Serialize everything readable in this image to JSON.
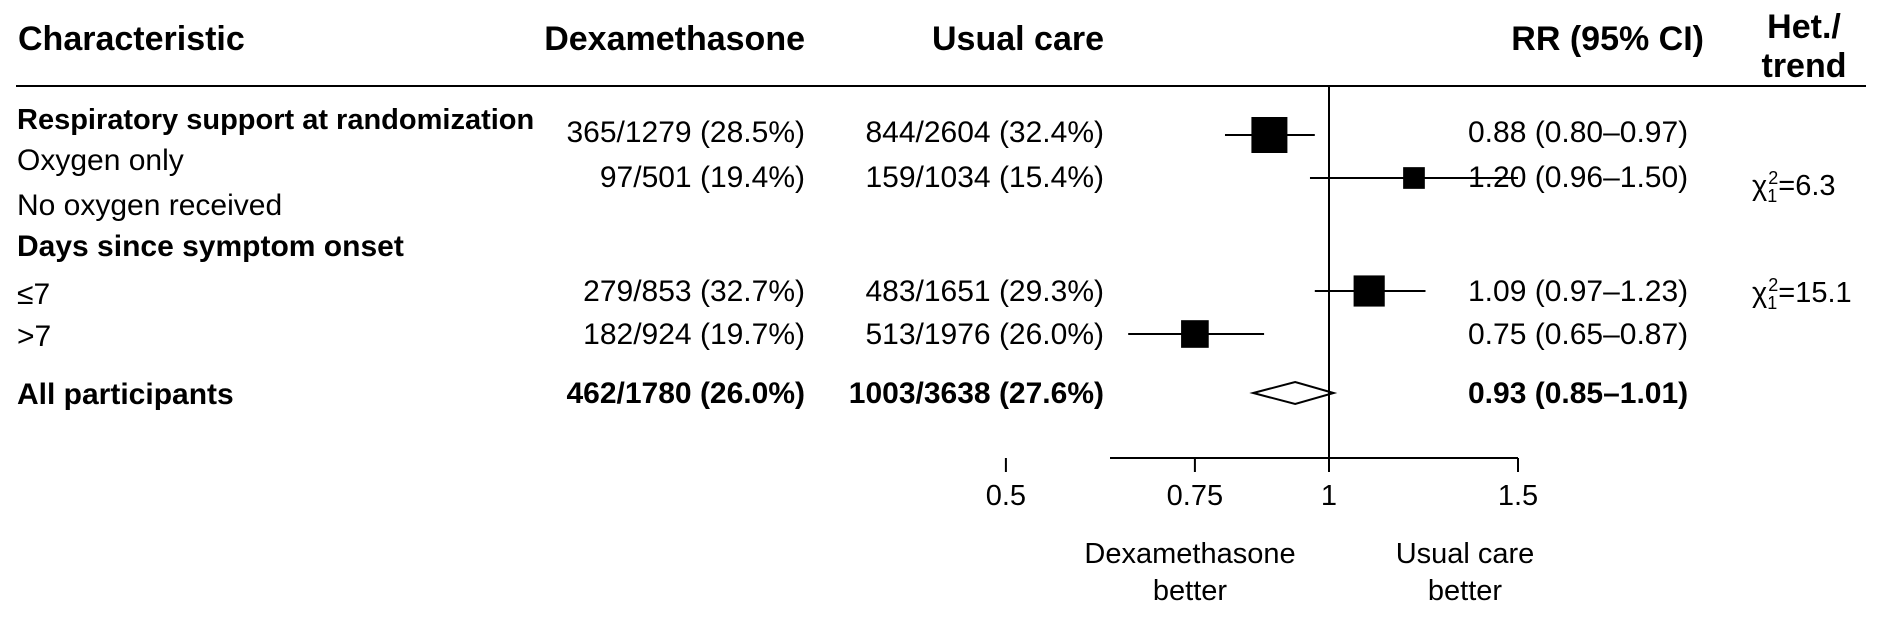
{
  "headers": {
    "characteristic": "Characteristic",
    "dexamethasone": "Dexamethasone",
    "usual_care": "Usual care",
    "rr": "RR (95% CI)",
    "het_line1": "Het./",
    "het_line2": "trend"
  },
  "rows": [
    {
      "label": "Respiratory support at randomization",
      "dex": "365/1279 (28.5%)",
      "uc": "844/2604 (32.4%)",
      "rr_text": "0.88 (0.80–0.97)"
    },
    {
      "label": "Oxygen only",
      "dex": "97/501 (19.4%)",
      "uc": "159/1034 (15.4%)",
      "rr_text": "1.20 (0.96–1.50)"
    },
    {
      "label": "No oxygen received"
    },
    {
      "label": "Days since symptom onset"
    },
    {
      "label": "≤7",
      "dex": "279/853 (32.7%)",
      "uc": "483/1651 (29.3%)",
      "rr_text": "1.09 (0.97–1.23)"
    },
    {
      "label": ">7",
      "dex": "182/924 (19.7%)",
      "uc": "513/1976 (26.0%)",
      "rr_text": "0.75 (0.65–0.87)"
    },
    {
      "label": "All participants",
      "dex": "462/1780 (26.0%)",
      "uc": "1003/3638 (27.6%)",
      "rr_text": "0.93 (0.85–1.01)"
    }
  ],
  "heterogeneity": [
    {
      "chi": "χ",
      "sub": "1",
      "sup": "2",
      "value": "=6.3"
    },
    {
      "chi": "χ",
      "sub": "1",
      "sup": "2",
      "value": "=15.1"
    }
  ],
  "axis": {
    "direction_left_line1": "Dexamethasone",
    "direction_left_line2": "better",
    "direction_right_line1": "Usual care",
    "direction_right_line2": "better"
  },
  "chart_data": {
    "type": "forest",
    "x_scale": "log",
    "xlim": [
      0.45,
      1.6
    ],
    "reference_value": 1,
    "ticks": [
      0.5,
      0.75,
      1,
      1.5
    ],
    "tick_labels": [
      "0.5",
      "0.75",
      "1",
      "1.5"
    ],
    "estimates": [
      {
        "row": "Respiratory support at randomization",
        "rr": 0.88,
        "lo": 0.8,
        "hi": 0.97,
        "weight": 1.0,
        "marker": "square"
      },
      {
        "row": "Oxygen only",
        "rr": 1.2,
        "lo": 0.96,
        "hi": 1.5,
        "weight": 0.35,
        "marker": "square"
      },
      {
        "row": "≤7",
        "rr": 1.09,
        "lo": 0.97,
        "hi": 1.23,
        "weight": 0.78,
        "marker": "square"
      },
      {
        "row": ">7",
        "rr": 0.75,
        "lo": 0.65,
        "hi": 0.87,
        "weight": 0.62,
        "marker": "square"
      },
      {
        "row": "All participants",
        "rr": 0.93,
        "lo": 0.85,
        "hi": 1.01,
        "marker": "diamond"
      }
    ]
  }
}
